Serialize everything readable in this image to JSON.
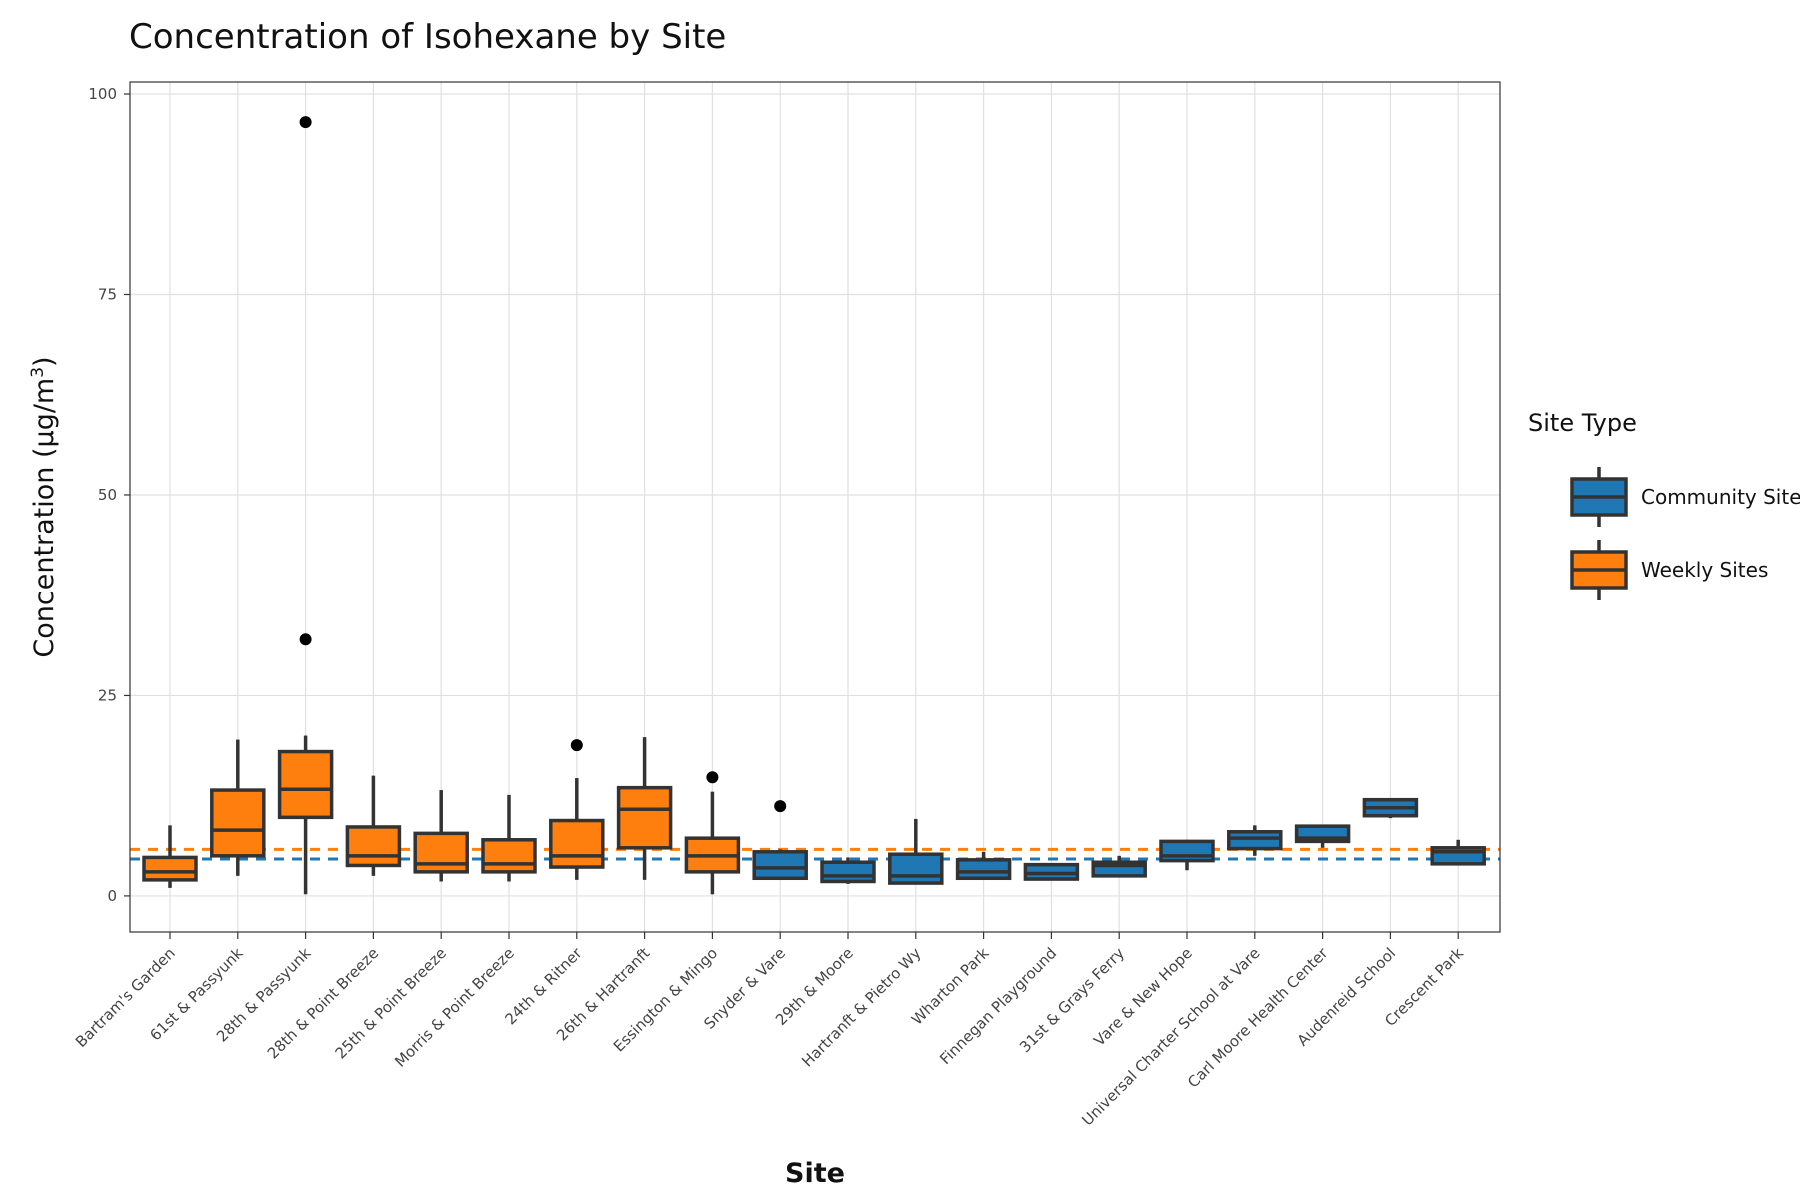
{
  "chart_data": {
    "type": "boxplot",
    "title": "Concentration of Isohexane by Site",
    "xlabel": "Site",
    "ylabel_main": "Concentration (µg/m",
    "ylabel_sup": "3",
    "ylabel_close": ")",
    "ylim": [
      -4.5,
      101.5
    ],
    "yticks": [
      0,
      25,
      50,
      75,
      100
    ],
    "grid": true,
    "legend": {
      "title": "Site Type",
      "position": "right",
      "entries": [
        {
          "name": "Community Sites",
          "color": "#1f77b4"
        },
        {
          "name": "Weekly Sites",
          "color": "#ff7f0e"
        }
      ]
    },
    "reference_lines": [
      {
        "type": "Weekly Sites",
        "value": 5.8,
        "color": "#ff7f0e",
        "style": "dashed"
      },
      {
        "type": "Community Sites",
        "value": 4.6,
        "color": "#1f77b4",
        "style": "dashed"
      }
    ],
    "categories": [
      "Bartram's Garden",
      "61st & Passyunk",
      "28th & Passyunk",
      "28th & Point Breeze",
      "25th & Point Breeze",
      "Morris & Point Breeze",
      "24th & Ritner",
      "26th & Hartranft",
      "Essington & Mingo",
      "Snyder & Vare",
      "29th & Moore",
      "Hartranft & Pietro Wy",
      "Wharton Park",
      "Finnegan Playground",
      "31st & Grays Ferry",
      "Vare & New Hope",
      "Universal Charter School at Vare",
      "Carl Moore Health Center",
      "Audenreid School",
      "Crescent Park"
    ],
    "boxes": [
      {
        "site": "Bartram's Garden",
        "type": "Weekly Sites",
        "min": 1.0,
        "q1": 2.0,
        "median": 3.0,
        "q3": 4.8,
        "max": 8.8,
        "outliers": []
      },
      {
        "site": "61st & Passyunk",
        "type": "Weekly Sites",
        "min": 2.5,
        "q1": 5.0,
        "median": 8.2,
        "q3": 13.2,
        "max": 19.5,
        "outliers": []
      },
      {
        "site": "28th & Passyunk",
        "type": "Weekly Sites",
        "min": 0.2,
        "q1": 9.8,
        "median": 13.3,
        "q3": 18.0,
        "max": 20.0,
        "outliers": [
          32.0,
          96.5
        ]
      },
      {
        "site": "28th & Point Breeze",
        "type": "Weekly Sites",
        "min": 2.5,
        "q1": 3.8,
        "median": 5.0,
        "q3": 8.6,
        "max": 15.0,
        "outliers": []
      },
      {
        "site": "25th & Point Breeze",
        "type": "Weekly Sites",
        "min": 1.8,
        "q1": 3.0,
        "median": 4.0,
        "q3": 7.8,
        "max": 13.2,
        "outliers": []
      },
      {
        "site": "Morris & Point Breeze",
        "type": "Weekly Sites",
        "min": 1.8,
        "q1": 3.0,
        "median": 4.0,
        "q3": 7.0,
        "max": 12.6,
        "outliers": []
      },
      {
        "site": "24th & Ritner",
        "type": "Weekly Sites",
        "min": 2.0,
        "q1": 3.6,
        "median": 5.0,
        "q3": 9.4,
        "max": 14.7,
        "outliers": [
          18.8
        ]
      },
      {
        "site": "26th & Hartranft",
        "type": "Weekly Sites",
        "min": 2.0,
        "q1": 6.0,
        "median": 10.8,
        "q3": 13.5,
        "max": 19.8,
        "outliers": []
      },
      {
        "site": "Essington & Mingo",
        "type": "Weekly Sites",
        "min": 0.2,
        "q1": 3.0,
        "median": 5.0,
        "q3": 7.2,
        "max": 13.0,
        "outliers": [
          14.8
        ]
      },
      {
        "site": "Snyder & Vare",
        "type": "Community Sites",
        "min": 2.0,
        "q1": 2.2,
        "median": 3.5,
        "q3": 5.5,
        "max": 5.8,
        "outliers": [
          11.2
        ]
      },
      {
        "site": "29th & Moore",
        "type": "Community Sites",
        "min": 1.5,
        "q1": 1.8,
        "median": 2.5,
        "q3": 4.2,
        "max": 4.8,
        "outliers": []
      },
      {
        "site": "Hartranft & Pietro Wy",
        "type": "Community Sites",
        "min": 1.5,
        "q1": 1.6,
        "median": 2.5,
        "q3": 5.2,
        "max": 9.6,
        "outliers": []
      },
      {
        "site": "Wharton Park",
        "type": "Community Sites",
        "min": 2.0,
        "q1": 2.2,
        "median": 3.0,
        "q3": 4.5,
        "max": 5.5,
        "outliers": []
      },
      {
        "site": "Finnegan Playground",
        "type": "Community Sites",
        "min": 2.0,
        "q1": 2.1,
        "median": 2.8,
        "q3": 3.9,
        "max": 3.9,
        "outliers": []
      },
      {
        "site": "31st & Grays Ferry",
        "type": "Community Sites",
        "min": 2.4,
        "q1": 2.5,
        "median": 3.8,
        "q3": 4.2,
        "max": 5.0,
        "outliers": []
      },
      {
        "site": "Vare & New Hope",
        "type": "Community Sites",
        "min": 3.2,
        "q1": 4.4,
        "median": 5.0,
        "q3": 6.8,
        "max": 7.0,
        "outliers": []
      },
      {
        "site": "Universal Charter School at Vare",
        "type": "Community Sites",
        "min": 5.0,
        "q1": 5.9,
        "median": 7.2,
        "q3": 8.0,
        "max": 8.8,
        "outliers": []
      },
      {
        "site": "Carl Moore Health Center",
        "type": "Community Sites",
        "min": 6.0,
        "q1": 6.8,
        "median": 7.2,
        "q3": 8.7,
        "max": 8.8,
        "outliers": []
      },
      {
        "site": "Audenreid School",
        "type": "Community Sites",
        "min": 9.7,
        "q1": 10.0,
        "median": 11.0,
        "q3": 12.0,
        "max": 12.0,
        "outliers": []
      },
      {
        "site": "Crescent Park",
        "type": "Community Sites",
        "min": 3.8,
        "q1": 4.0,
        "median": 5.5,
        "q3": 6.0,
        "max": 7.0,
        "outliers": []
      }
    ]
  }
}
